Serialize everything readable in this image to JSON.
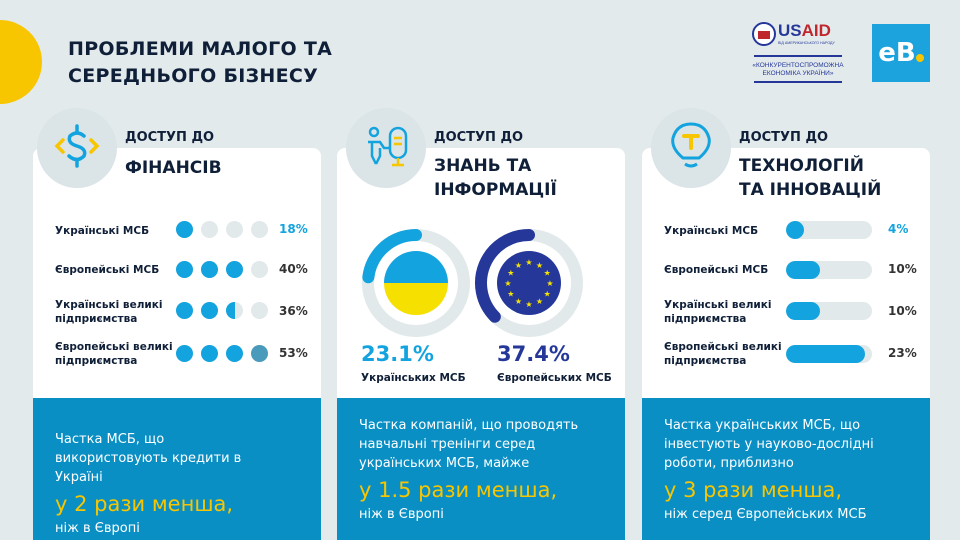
{
  "header": {
    "title_line1": "ПРОБЛЕМИ МАЛОГО ТА",
    "title_line2": "СЕРЕДНЬОГО БІЗНЕСУ",
    "usaid": {
      "name": "USAID",
      "sub": "ВІД АМЕРИКАНСЬКОГО НАРОДУ",
      "project_line1": "«КОНКУРЕНТОСПРОМОЖНА",
      "project_line2": "ЕКОНОМІКА УКРАЇНИ»"
    },
    "eb_logo": "eB"
  },
  "colors": {
    "accent": "#13a3de",
    "yellow": "#f7c600",
    "navy": "#0f1f38",
    "panel_blue": "#0a8fc4",
    "eu_blue": "#25389a"
  },
  "panels": [
    {
      "icon": "dollar-icon",
      "kicker": "ДОСТУП ДО",
      "heading": "ФІНАНСІВ",
      "rows": [
        {
          "label": "Українські МСБ",
          "value": "18%",
          "dots_filled": 1
        },
        {
          "label": "Європейські МСБ",
          "value": "40%",
          "dots_filled": 3
        },
        {
          "label": "Українські великі підприємства",
          "value": "36%",
          "dots_filled": 2.5
        },
        {
          "label": "Європейські великі підприємства",
          "value": "53%",
          "dots_filled": 4
        }
      ],
      "text": "Частка МСБ, що використовують кредити в Україні",
      "highlight": "у 2 рази менша,",
      "tail": "ніж в Європі"
    },
    {
      "icon": "person-microphone-icon",
      "kicker": "ДОСТУП ДО",
      "heading_line1": "ЗНАНЬ ТА",
      "heading_line2": "ІНФОРМАЦІЇ",
      "donuts": [
        {
          "value": "23.1%",
          "fraction": 0.231,
          "label": "Українських МСБ",
          "flag": "ukraine-flag"
        },
        {
          "value": "37.4%",
          "fraction": 0.374,
          "label": "Європейських МСБ",
          "flag": "eu-flag"
        }
      ],
      "text": "Частка компаній, що проводять навчальні тренінги серед українських МСБ, майже",
      "highlight": "у 1.5 рази менша,",
      "tail": "ніж в Європі"
    },
    {
      "icon": "lightbulb-icon",
      "kicker": "ДОСТУП ДО",
      "heading_line1": "ТЕХНОЛОГІЙ",
      "heading_line2": "ТА ІННОВАЦІЙ",
      "rows": [
        {
          "label": "Українські МСБ",
          "value": "4%",
          "num": 4
        },
        {
          "label": "Європейські МСБ",
          "value": "10%",
          "num": 10
        },
        {
          "label": "Українські великі підприємства",
          "value": "10%",
          "num": 10
        },
        {
          "label": "Європейські великі підприємства",
          "value": "23%",
          "num": 23
        }
      ],
      "text": "Частка українських МСБ, що інвестують у науково-дослідні роботи, приблизно",
      "highlight": "у 3 рази менша,",
      "tail": "ніж серед Європейських МСБ"
    }
  ]
}
